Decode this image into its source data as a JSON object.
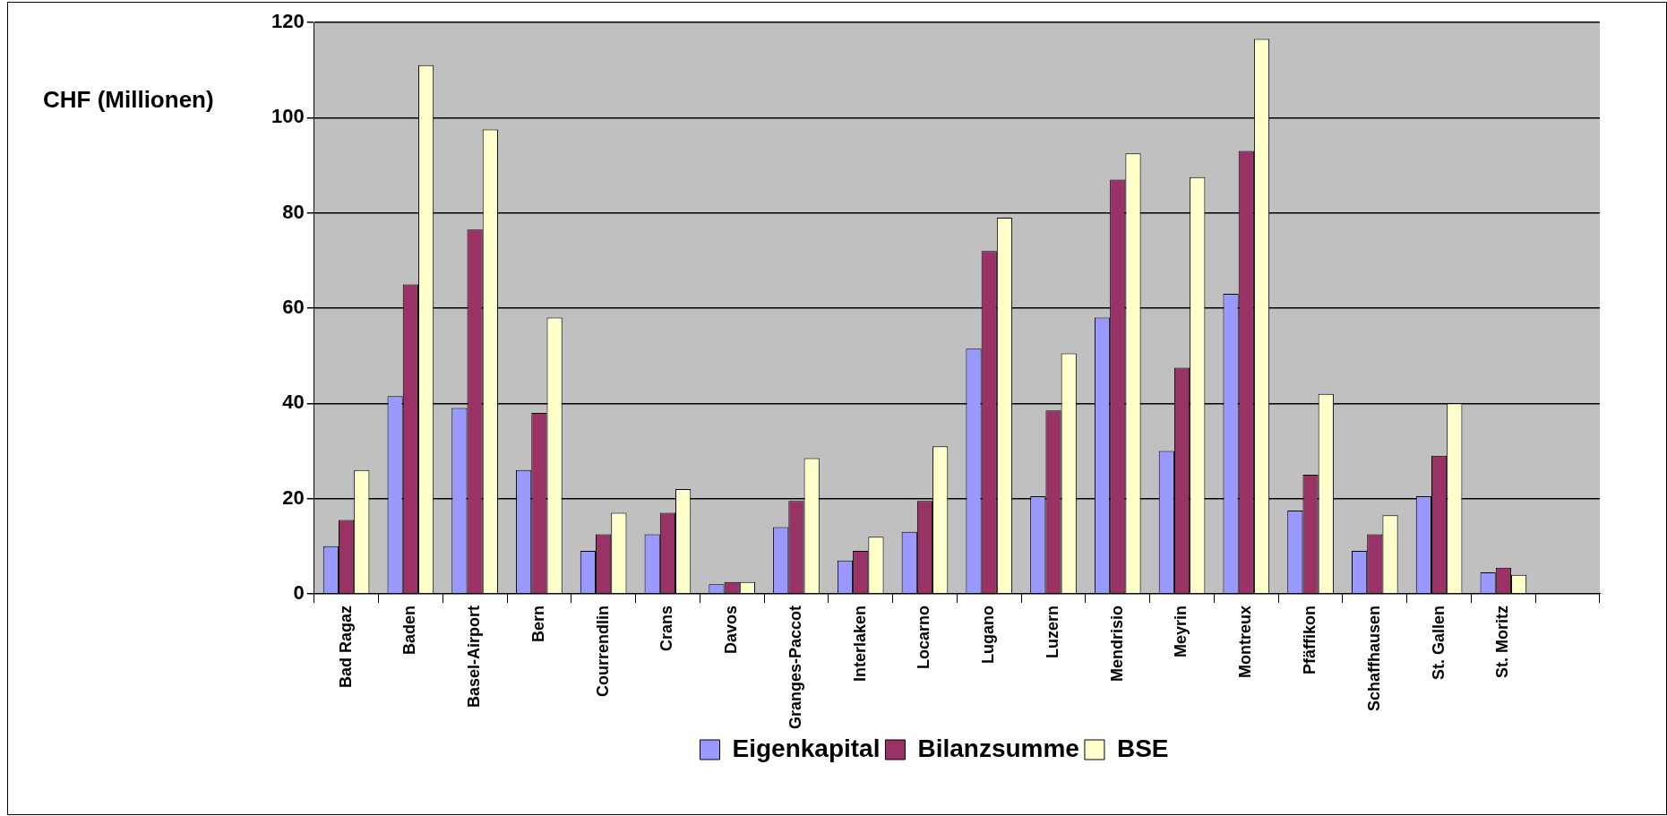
{
  "chart_data": {
    "type": "bar",
    "ylabel": "CHF (Millionen)",
    "categories": [
      "Bad Ragaz",
      "Baden",
      "Basel-Airport",
      "Bern",
      "Courrendlin",
      "Crans",
      "Davos",
      "Granges-Paccot",
      "Interlaken",
      "Locarno",
      "Lugano",
      "Luzern",
      "Mendrisio",
      "Meyrin",
      "Montreux",
      "Pfäffikon",
      "Schaffhausen",
      "St. Gallen",
      "St. Moritz",
      null
    ],
    "series": [
      {
        "name": "Eigenkapital",
        "color": "#9999ff",
        "values": [
          10,
          41.5,
          39,
          26,
          9,
          12.5,
          2,
          14,
          7,
          13,
          51.5,
          20.5,
          58,
          30,
          63,
          17.5,
          9,
          20.5,
          4.5,
          null
        ]
      },
      {
        "name": "Bilanzsumme",
        "color": "#993366",
        "values": [
          15.5,
          65,
          76.5,
          38,
          12.5,
          17,
          2.5,
          19.5,
          9,
          19.5,
          72,
          38.5,
          87,
          47.5,
          93,
          25,
          12.5,
          29,
          5.5,
          null
        ]
      },
      {
        "name": "BSE",
        "color": "#ffffcc",
        "values": [
          26,
          111,
          97.5,
          58,
          17,
          22,
          2.5,
          28.5,
          12,
          31,
          79,
          50.5,
          92.5,
          87.5,
          116.5,
          42,
          16.5,
          40,
          4,
          null
        ]
      }
    ],
    "ylim": [
      0,
      120
    ],
    "yticks": [
      0,
      20,
      40,
      60,
      80,
      100,
      120
    ],
    "grid": "y",
    "legend": "bottom"
  }
}
